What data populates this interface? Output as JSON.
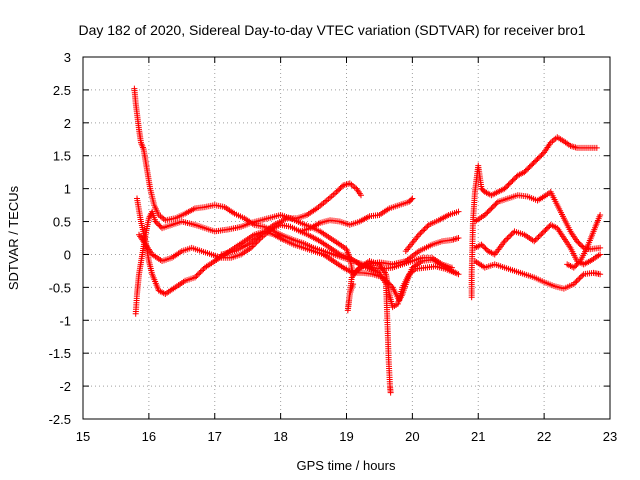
{
  "chart_data": {
    "type": "scatter",
    "title": "Day 182 of 2020, Sidereal Day-to-day VTEC variation (SDTVAR) for receiver bro1",
    "xlabel": "GPS time / hours",
    "ylabel": "SDTVAR / TECUs",
    "xlim": [
      15,
      23
    ],
    "ylim": [
      -2.5,
      3
    ],
    "xticks": [
      15,
      16,
      17,
      18,
      19,
      20,
      21,
      22,
      23
    ],
    "xtick_labels": [
      "15",
      "16",
      "17",
      "18",
      "19",
      "20",
      "21",
      "22",
      "23"
    ],
    "yticks": [
      -2.5,
      -2,
      -1.5,
      -1,
      -0.5,
      0,
      0.5,
      1,
      1.5,
      2,
      2.5,
      3
    ],
    "ytick_labels": [
      "-2.5",
      "-2",
      "-1.5",
      "-1",
      "-0.5",
      "0",
      "0.5",
      "1",
      "1.5",
      "2",
      "2.5",
      "3"
    ],
    "grid": true,
    "marker": "+",
    "color": "#ff0000",
    "series": [
      {
        "name": "trace-1",
        "points": [
          [
            15.78,
            2.52
          ],
          [
            15.8,
            2.3
          ],
          [
            15.85,
            1.9
          ],
          [
            15.88,
            1.7
          ],
          [
            15.92,
            1.6
          ],
          [
            15.97,
            1.3
          ],
          [
            16.02,
            1.0
          ],
          [
            16.08,
            0.75
          ],
          [
            16.15,
            0.6
          ],
          [
            16.25,
            0.52
          ],
          [
            16.4,
            0.55
          ],
          [
            16.55,
            0.62
          ],
          [
            16.7,
            0.7
          ],
          [
            16.85,
            0.72
          ],
          [
            17.0,
            0.75
          ],
          [
            17.15,
            0.72
          ],
          [
            17.3,
            0.62
          ],
          [
            17.45,
            0.55
          ],
          [
            17.6,
            0.45
          ],
          [
            17.75,
            0.42
          ],
          [
            17.9,
            0.35
          ],
          [
            18.05,
            0.28
          ],
          [
            18.2,
            0.22
          ],
          [
            18.35,
            0.17
          ],
          [
            18.5,
            0.1
          ],
          [
            18.65,
            0.05
          ],
          [
            18.8,
            0.0
          ],
          [
            18.95,
            -0.05
          ],
          [
            19.1,
            -0.1
          ],
          [
            19.25,
            -0.15
          ],
          [
            19.4,
            -0.2
          ],
          [
            19.55,
            -0.22
          ],
          [
            19.7,
            -0.2
          ],
          [
            19.85,
            -0.15
          ],
          [
            20.0,
            -0.1
          ],
          [
            20.15,
            -0.05
          ],
          [
            20.3,
            -0.05
          ],
          [
            20.45,
            -0.15
          ],
          [
            20.6,
            -0.25
          ],
          [
            20.7,
            -0.3
          ]
        ]
      },
      {
        "name": "trace-2",
        "points": [
          [
            15.8,
            -0.9
          ],
          [
            15.82,
            -0.6
          ],
          [
            15.85,
            -0.3
          ],
          [
            15.9,
            0.0
          ],
          [
            15.95,
            0.3
          ],
          [
            16.0,
            0.55
          ],
          [
            16.05,
            0.65
          ],
          [
            16.1,
            0.5
          ],
          [
            16.2,
            0.4
          ],
          [
            16.35,
            0.45
          ],
          [
            16.5,
            0.5
          ],
          [
            16.7,
            0.45
          ],
          [
            16.85,
            0.4
          ],
          [
            17.0,
            0.35
          ],
          [
            17.2,
            0.38
          ],
          [
            17.4,
            0.42
          ],
          [
            17.55,
            0.48
          ],
          [
            17.7,
            0.52
          ],
          [
            17.85,
            0.56
          ],
          [
            18.0,
            0.6
          ],
          [
            18.15,
            0.55
          ],
          [
            18.3,
            0.48
          ],
          [
            18.45,
            0.42
          ],
          [
            18.6,
            0.35
          ],
          [
            18.75,
            0.25
          ],
          [
            18.9,
            0.15
          ],
          [
            19.0,
            0.08
          ],
          [
            19.05,
            -0.05
          ],
          [
            19.1,
            -0.3
          ],
          [
            19.2,
            -0.2
          ],
          [
            19.35,
            -0.1
          ],
          [
            19.5,
            -0.15
          ],
          [
            19.6,
            -0.3
          ],
          [
            19.65,
            -0.6
          ],
          [
            19.7,
            -0.8
          ],
          [
            19.78,
            -0.75
          ],
          [
            19.85,
            -0.5
          ],
          [
            19.95,
            -0.3
          ],
          [
            20.05,
            -0.22
          ],
          [
            20.2,
            -0.2
          ],
          [
            20.35,
            -0.18
          ],
          [
            20.5,
            -0.22
          ],
          [
            20.65,
            -0.28
          ]
        ]
      },
      {
        "name": "trace-3",
        "points": [
          [
            15.82,
            0.85
          ],
          [
            15.88,
            0.5
          ],
          [
            15.95,
            0.2
          ],
          [
            16.0,
            -0.1
          ],
          [
            16.05,
            -0.3
          ],
          [
            16.15,
            -0.55
          ],
          [
            16.25,
            -0.6
          ],
          [
            16.4,
            -0.5
          ],
          [
            16.55,
            -0.4
          ],
          [
            16.7,
            -0.35
          ],
          [
            16.85,
            -0.2
          ],
          [
            17.0,
            -0.1
          ],
          [
            17.15,
            0.0
          ],
          [
            17.3,
            0.1
          ],
          [
            17.45,
            0.2
          ],
          [
            17.6,
            0.3
          ],
          [
            17.75,
            0.35
          ],
          [
            17.9,
            0.3
          ],
          [
            18.05,
            0.22
          ],
          [
            18.2,
            0.15
          ],
          [
            18.35,
            0.1
          ],
          [
            18.5,
            0.05
          ],
          [
            18.65,
            0.0
          ],
          [
            18.8,
            -0.1
          ],
          [
            18.95,
            -0.2
          ],
          [
            19.1,
            -0.28
          ],
          [
            19.25,
            -0.28
          ],
          [
            19.4,
            -0.3
          ],
          [
            19.55,
            -0.35
          ],
          [
            19.7,
            -0.5
          ],
          [
            19.8,
            -0.7
          ],
          [
            19.85,
            -0.6
          ],
          [
            19.92,
            -0.4
          ],
          [
            20.0,
            -0.2
          ],
          [
            20.15,
            -0.1
          ],
          [
            20.3,
            -0.08
          ],
          [
            20.45,
            -0.15
          ],
          [
            20.6,
            -0.2
          ]
        ]
      },
      {
        "name": "trace-4",
        "points": [
          [
            15.85,
            0.3
          ],
          [
            15.95,
            0.15
          ],
          [
            16.05,
            0.0
          ],
          [
            16.2,
            -0.1
          ],
          [
            16.35,
            -0.05
          ],
          [
            16.5,
            0.05
          ],
          [
            16.65,
            0.1
          ],
          [
            16.8,
            0.05
          ],
          [
            16.95,
            0.0
          ],
          [
            17.1,
            -0.05
          ],
          [
            17.25,
            -0.05
          ],
          [
            17.4,
            0.0
          ],
          [
            17.55,
            0.1
          ],
          [
            17.7,
            0.25
          ],
          [
            17.85,
            0.38
          ],
          [
            18.0,
            0.45
          ],
          [
            18.15,
            0.42
          ],
          [
            18.3,
            0.35
          ],
          [
            18.45,
            0.28
          ],
          [
            18.6,
            0.2
          ],
          [
            18.75,
            0.1
          ],
          [
            18.9,
            0.0
          ],
          [
            19.05,
            -0.05
          ],
          [
            19.2,
            -0.15
          ],
          [
            19.35,
            -0.22
          ],
          [
            19.5,
            -0.28
          ],
          [
            19.6,
            -0.45
          ],
          [
            19.62,
            -1.0
          ],
          [
            19.64,
            -1.6
          ],
          [
            19.66,
            -2.0
          ],
          [
            19.67,
            -2.1
          ]
        ]
      },
      {
        "name": "trace-5",
        "points": [
          [
            17.1,
            0.0
          ],
          [
            17.3,
            0.05
          ],
          [
            17.5,
            0.15
          ],
          [
            17.7,
            0.3
          ],
          [
            17.9,
            0.45
          ],
          [
            18.1,
            0.55
          ],
          [
            18.25,
            0.55
          ],
          [
            18.4,
            0.6
          ],
          [
            18.55,
            0.7
          ],
          [
            18.7,
            0.82
          ],
          [
            18.85,
            0.95
          ],
          [
            18.95,
            1.05
          ],
          [
            19.05,
            1.08
          ],
          [
            19.15,
            1.0
          ],
          [
            19.22,
            0.9
          ]
        ]
      },
      {
        "name": "trace-6",
        "points": [
          [
            18.3,
            0.35
          ],
          [
            18.45,
            0.4
          ],
          [
            18.6,
            0.48
          ],
          [
            18.75,
            0.52
          ],
          [
            18.9,
            0.5
          ],
          [
            19.05,
            0.45
          ],
          [
            19.2,
            0.5
          ],
          [
            19.35,
            0.58
          ],
          [
            19.5,
            0.6
          ],
          [
            19.65,
            0.7
          ],
          [
            19.8,
            0.75
          ],
          [
            19.95,
            0.8
          ],
          [
            20.0,
            0.85
          ]
        ]
      },
      {
        "name": "trace-7",
        "points": [
          [
            19.1,
            -0.45
          ],
          [
            19.05,
            -0.6
          ],
          [
            19.02,
            -0.85
          ],
          [
            19.08,
            -0.35
          ],
          [
            19.15,
            -0.25
          ],
          [
            19.3,
            -0.15
          ],
          [
            19.5,
            -0.12
          ],
          [
            19.7,
            -0.15
          ],
          [
            19.9,
            -0.1
          ],
          [
            20.1,
            0.05
          ],
          [
            20.3,
            0.15
          ],
          [
            20.45,
            0.2
          ],
          [
            20.6,
            0.22
          ],
          [
            20.7,
            0.25
          ]
        ]
      },
      {
        "name": "trace-8",
        "points": [
          [
            19.9,
            0.05
          ],
          [
            20.1,
            0.3
          ],
          [
            20.25,
            0.45
          ],
          [
            20.4,
            0.52
          ],
          [
            20.55,
            0.6
          ],
          [
            20.7,
            0.65
          ]
        ]
      },
      {
        "name": "trace-9",
        "points": [
          [
            20.9,
            -0.65
          ],
          [
            20.9,
            -0.3
          ],
          [
            20.92,
            0.5
          ],
          [
            20.95,
            0.95
          ],
          [
            21.0,
            1.35
          ],
          [
            21.05,
            1.0
          ],
          [
            21.1,
            0.95
          ],
          [
            21.2,
            0.9
          ],
          [
            21.3,
            0.95
          ],
          [
            21.4,
            1.0
          ],
          [
            21.5,
            1.1
          ],
          [
            21.6,
            1.2
          ],
          [
            21.7,
            1.25
          ],
          [
            21.8,
            1.35
          ],
          [
            21.9,
            1.45
          ],
          [
            22.0,
            1.55
          ],
          [
            22.1,
            1.7
          ],
          [
            22.2,
            1.78
          ],
          [
            22.3,
            1.72
          ],
          [
            22.4,
            1.65
          ],
          [
            22.5,
            1.62
          ],
          [
            22.65,
            1.62
          ],
          [
            22.8,
            1.62
          ]
        ]
      },
      {
        "name": "trace-10",
        "points": [
          [
            20.95,
            0.5
          ],
          [
            21.1,
            0.6
          ],
          [
            21.2,
            0.7
          ],
          [
            21.3,
            0.8
          ],
          [
            21.45,
            0.85
          ],
          [
            21.6,
            0.9
          ],
          [
            21.75,
            0.88
          ],
          [
            21.9,
            0.82
          ],
          [
            22.0,
            0.88
          ],
          [
            22.1,
            0.95
          ],
          [
            22.2,
            0.75
          ],
          [
            22.3,
            0.55
          ],
          [
            22.4,
            0.35
          ],
          [
            22.5,
            0.2
          ],
          [
            22.6,
            0.1
          ],
          [
            22.7,
            0.08
          ],
          [
            22.85,
            0.1
          ]
        ]
      },
      {
        "name": "trace-11",
        "points": [
          [
            20.95,
            0.1
          ],
          [
            21.05,
            0.15
          ],
          [
            21.15,
            0.05
          ],
          [
            21.25,
            0.0
          ],
          [
            21.4,
            0.2
          ],
          [
            21.55,
            0.35
          ],
          [
            21.7,
            0.3
          ],
          [
            21.85,
            0.2
          ],
          [
            22.0,
            0.35
          ],
          [
            22.1,
            0.45
          ],
          [
            22.2,
            0.4
          ],
          [
            22.3,
            0.25
          ],
          [
            22.4,
            0.1
          ],
          [
            22.5,
            -0.1
          ],
          [
            22.6,
            -0.15
          ],
          [
            22.7,
            -0.1
          ],
          [
            22.85,
            0.0
          ]
        ]
      },
      {
        "name": "trace-12",
        "points": [
          [
            20.95,
            -0.1
          ],
          [
            21.1,
            -0.2
          ],
          [
            21.25,
            -0.15
          ],
          [
            21.4,
            -0.2
          ],
          [
            21.55,
            -0.25
          ],
          [
            21.7,
            -0.3
          ],
          [
            21.85,
            -0.35
          ],
          [
            22.0,
            -0.42
          ],
          [
            22.15,
            -0.48
          ],
          [
            22.3,
            -0.52
          ],
          [
            22.45,
            -0.45
          ],
          [
            22.6,
            -0.3
          ],
          [
            22.75,
            -0.28
          ],
          [
            22.85,
            -0.3
          ]
        ]
      },
      {
        "name": "trace-13",
        "points": [
          [
            22.35,
            -0.15
          ],
          [
            22.45,
            -0.2
          ],
          [
            22.55,
            -0.1
          ],
          [
            22.65,
            0.1
          ],
          [
            22.75,
            0.35
          ],
          [
            22.85,
            0.6
          ]
        ]
      }
    ]
  }
}
